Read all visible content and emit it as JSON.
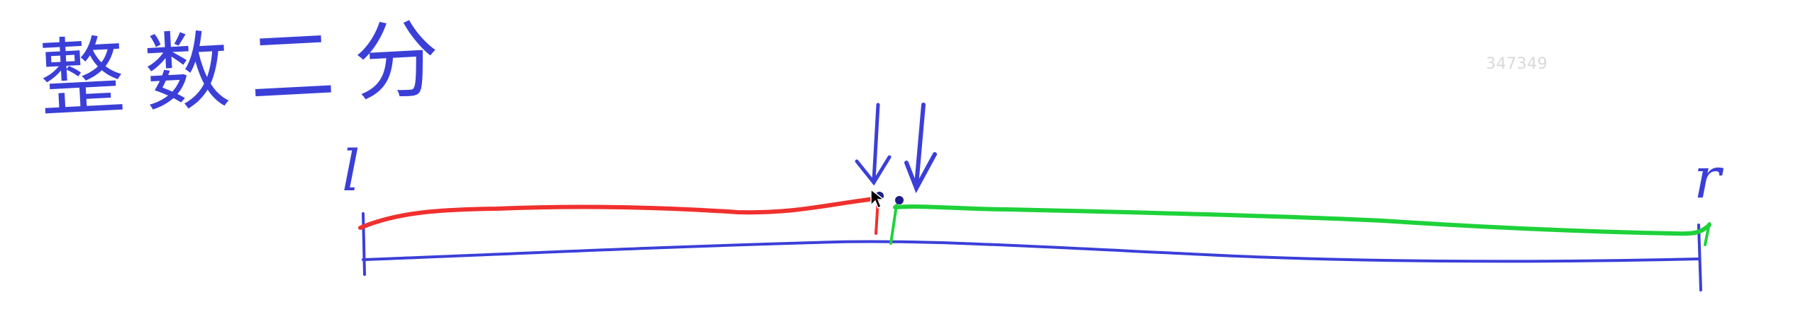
{
  "title": "整数二分",
  "watermark": "347349",
  "labels": {
    "left": "l",
    "right": "r"
  },
  "colors": {
    "ink_blue": "#3b3fd8",
    "red_segment": "#f0302e",
    "green_segment": "#1ed23a",
    "watermark": "#d9d9d9"
  },
  "icons": {
    "pointer": "cursor-arrow-icon",
    "markers": "down-arrow-icon"
  }
}
